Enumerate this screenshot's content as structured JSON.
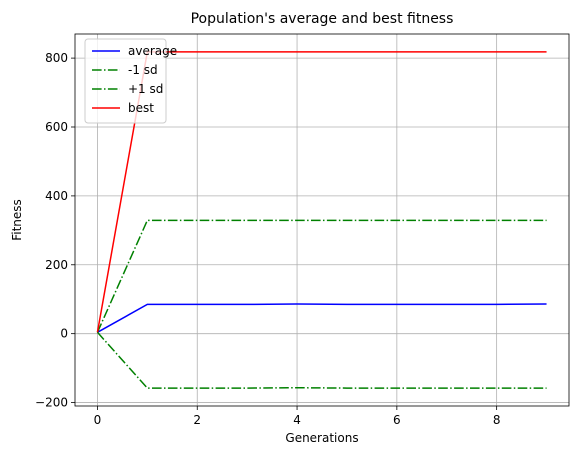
{
  "chart_data": {
    "type": "line",
    "title": "Population's average and best fitness",
    "xlabel": "Generations",
    "ylabel": "Fitness",
    "xlim": [
      -0.45,
      9.45
    ],
    "ylim": [
      -210,
      870
    ],
    "xticks": [
      0,
      2,
      4,
      6,
      8
    ],
    "yticks": [
      -200,
      0,
      200,
      400,
      600,
      800
    ],
    "grid": true,
    "legend_position": "top-left",
    "x": [
      0,
      1,
      2,
      3,
      4,
      5,
      6,
      7,
      8,
      9
    ],
    "series": [
      {
        "name": "average",
        "color": "#0000ff",
        "style": "solid",
        "values": [
          4,
          85,
          85,
          85,
          86,
          85,
          85,
          85,
          85,
          86
        ]
      },
      {
        "name": "-1 sd",
        "color": "#008000",
        "style": "dashdot",
        "values": [
          4,
          -158,
          -158,
          -158,
          -157,
          -158,
          -158,
          -158,
          -158,
          -158
        ]
      },
      {
        "name": "+1 sd",
        "color": "#008000",
        "style": "dashdot",
        "values": [
          4,
          329,
          329,
          329,
          329,
          329,
          329,
          329,
          329,
          329
        ]
      },
      {
        "name": "best",
        "color": "#ff0000",
        "style": "solid",
        "values": [
          4,
          818,
          818,
          818,
          818,
          818,
          818,
          818,
          818,
          818
        ]
      }
    ]
  }
}
